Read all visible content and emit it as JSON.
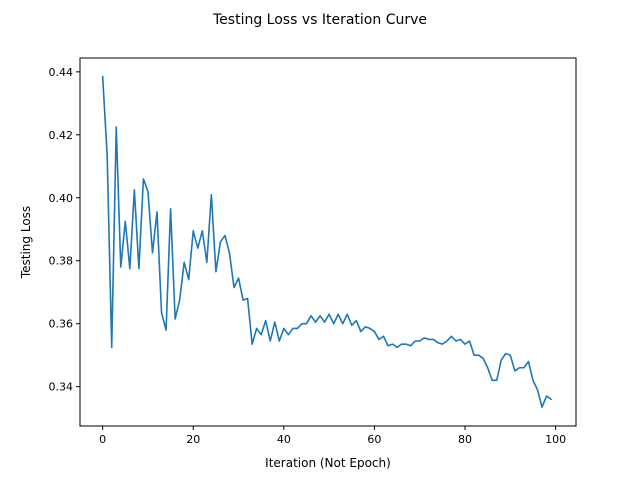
{
  "chart_data": {
    "type": "line",
    "title": "Testing Loss vs Iteration Curve",
    "xlabel": "Iteration (Not Epoch)",
    "ylabel": "Testing Loss",
    "xlim": [
      -5,
      104.5
    ],
    "ylim": [
      0.3275,
      0.4444
    ],
    "xticks": [
      0,
      20,
      40,
      60,
      80,
      100
    ],
    "yticks": [
      0.34,
      0.36,
      0.38,
      0.4,
      0.42,
      0.44
    ],
    "ytick_labels": [
      "0.34",
      "0.36",
      "0.38",
      "0.40",
      "0.42",
      "0.44"
    ],
    "grid": false,
    "series": [
      {
        "color": "#1f77b4",
        "x": [
          0,
          1,
          2,
          3,
          4,
          5,
          6,
          7,
          8,
          9,
          10,
          11,
          12,
          13,
          14,
          15,
          16,
          17,
          18,
          19,
          20,
          21,
          22,
          23,
          24,
          25,
          26,
          27,
          28,
          29,
          30,
          31,
          32,
          33,
          34,
          35,
          36,
          37,
          38,
          39,
          40,
          41,
          42,
          43,
          44,
          45,
          46,
          47,
          48,
          49,
          50,
          51,
          52,
          53,
          54,
          55,
          56,
          57,
          58,
          59,
          60,
          61,
          62,
          63,
          64,
          65,
          66,
          67,
          68,
          69,
          70,
          71,
          72,
          73,
          74,
          75,
          76,
          77,
          78,
          79,
          80,
          81,
          82,
          83,
          84,
          85,
          86,
          87,
          88,
          89,
          90,
          91,
          92,
          93,
          94,
          95,
          96,
          97,
          98,
          99
        ],
        "y": [
          0.4385,
          0.4135,
          0.3525,
          0.4225,
          0.378,
          0.3925,
          0.3775,
          0.4025,
          0.3775,
          0.406,
          0.402,
          0.3825,
          0.3955,
          0.3635,
          0.358,
          0.3965,
          0.3615,
          0.3675,
          0.3795,
          0.374,
          0.3895,
          0.384,
          0.3895,
          0.3795,
          0.401,
          0.3765,
          0.386,
          0.388,
          0.3825,
          0.3715,
          0.3745,
          0.3675,
          0.368,
          0.3535,
          0.3585,
          0.3565,
          0.361,
          0.3545,
          0.3605,
          0.3545,
          0.3585,
          0.3565,
          0.3585,
          0.3585,
          0.36,
          0.36,
          0.3625,
          0.3605,
          0.3625,
          0.3605,
          0.363,
          0.36,
          0.363,
          0.36,
          0.363,
          0.3595,
          0.361,
          0.3575,
          0.359,
          0.3585,
          0.3575,
          0.355,
          0.356,
          0.353,
          0.3535,
          0.3525,
          0.3535,
          0.3535,
          0.353,
          0.3545,
          0.3545,
          0.3555,
          0.355,
          0.355,
          0.354,
          0.3535,
          0.3545,
          0.356,
          0.3545,
          0.355,
          0.3535,
          0.3545,
          0.35,
          0.35,
          0.349,
          0.346,
          0.342,
          0.342,
          0.3485,
          0.3505,
          0.35,
          0.345,
          0.346,
          0.346,
          0.348,
          0.342,
          0.339,
          0.3335,
          0.337,
          0.336
        ]
      }
    ]
  }
}
